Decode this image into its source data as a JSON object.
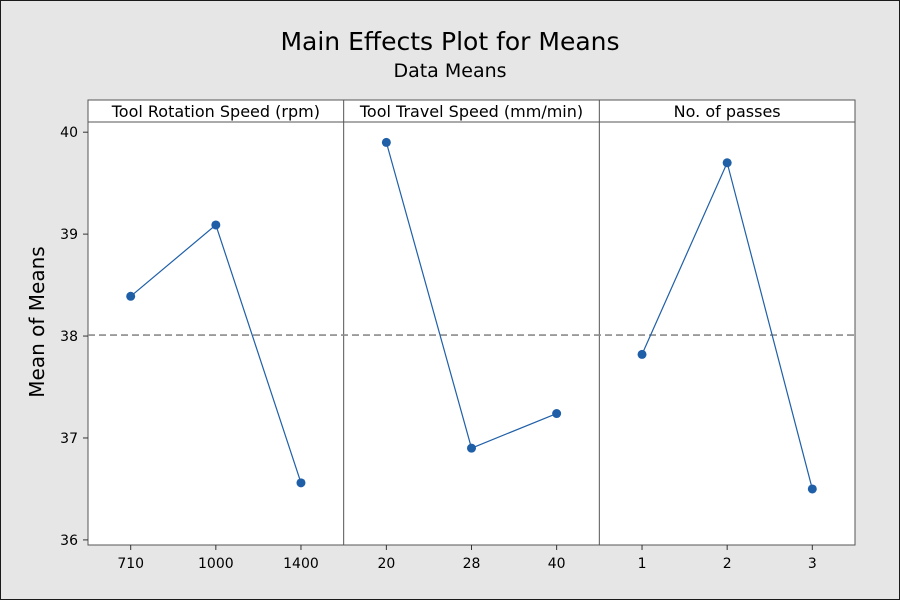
{
  "chart_data": {
    "type": "line",
    "title": "Main Effects Plot for Means",
    "subtitle": "Data Means",
    "ylabel": "Mean of Means",
    "ylim": [
      35.95,
      40.1
    ],
    "yticks": [
      36,
      37,
      38,
      39,
      40
    ],
    "reference_line": 38.01,
    "grid": false,
    "colors": {
      "line": "#1f5fa8",
      "marker": "#1f5fa8",
      "reference": "#8c8c8c",
      "background": "#e6e6e6",
      "plot_background": "#ffffff"
    },
    "panels": [
      {
        "label": "Tool Rotation Speed (rpm)",
        "categories": [
          "710",
          "1000",
          "1400"
        ],
        "values": [
          38.39,
          39.09,
          36.56
        ]
      },
      {
        "label": "Tool Travel Speed (mm/min)",
        "categories": [
          "20",
          "28",
          "40"
        ],
        "values": [
          39.9,
          36.9,
          37.24
        ]
      },
      {
        "label": "No. of passes",
        "categories": [
          "1",
          "2",
          "3"
        ],
        "values": [
          37.82,
          39.7,
          36.5
        ]
      }
    ]
  }
}
